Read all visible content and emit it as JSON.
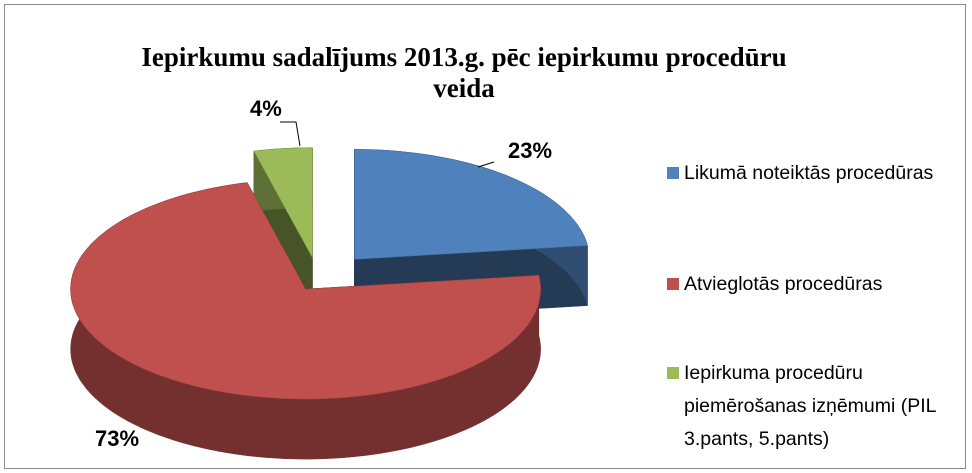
{
  "chart_data": {
    "type": "pie",
    "title": "Iepirkumu sadalījums 2013.g. pēc iepirkumu procedūru veida",
    "categories": [
      "Likumā noteiktās procedūras",
      "Atvieglotās procedūras",
      "Iepirkuma procedūru piemērošanas izņēmumi (PIL 3.pants, 5.pants)"
    ],
    "values": [
      23,
      73,
      4
    ],
    "value_labels": [
      "23%",
      "73%",
      "4%"
    ],
    "colors": [
      "#4f81bd",
      "#c0504d",
      "#9bbb59"
    ],
    "legend": "right"
  }
}
